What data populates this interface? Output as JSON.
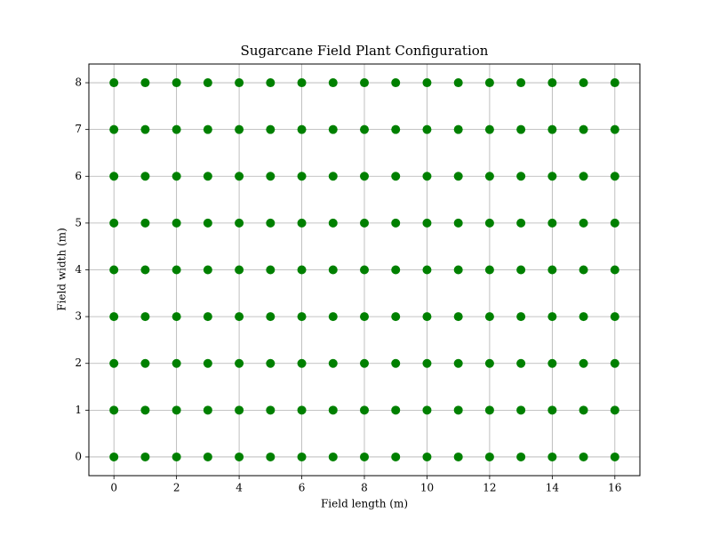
{
  "chart_data": {
    "type": "scatter",
    "title": "Sugarcane Field Plant Configuration",
    "x_label": "Field length (m)",
    "y_label": "Field width (m)",
    "color": "#008000",
    "grid": true,
    "x": [
      0,
      1,
      2,
      3,
      4,
      5,
      6,
      7,
      8,
      9,
      10,
      11,
      12,
      13,
      14,
      15,
      16,
      0,
      1,
      2,
      3,
      4,
      5,
      6,
      7,
      8,
      9,
      10,
      11,
      12,
      13,
      14,
      15,
      16,
      0,
      1,
      2,
      3,
      4,
      5,
      6,
      7,
      8,
      9,
      10,
      11,
      12,
      13,
      14,
      15,
      16,
      0,
      1,
      2,
      3,
      4,
      5,
      6,
      7,
      8,
      9,
      10,
      11,
      12,
      13,
      14,
      15,
      16,
      0,
      1,
      2,
      3,
      4,
      5,
      6,
      7,
      8,
      9,
      10,
      11,
      12,
      13,
      14,
      15,
      16,
      0,
      1,
      2,
      3,
      4,
      5,
      6,
      7,
      8,
      9,
      10,
      11,
      12,
      13,
      14,
      15,
      16,
      0,
      1,
      2,
      3,
      4,
      5,
      6,
      7,
      8,
      9,
      10,
      11,
      12,
      13,
      14,
      15,
      16,
      0,
      1,
      2,
      3,
      4,
      5,
      6,
      7,
      8,
      9,
      10,
      11,
      12,
      13,
      14,
      15,
      16,
      0,
      1,
      2,
      3,
      4,
      5,
      6,
      7,
      8,
      9,
      10,
      11,
      12,
      13,
      14,
      15,
      16
    ],
    "y": [
      0,
      0,
      0,
      0,
      0,
      0,
      0,
      0,
      0,
      0,
      0,
      0,
      0,
      0,
      0,
      0,
      0,
      1,
      1,
      1,
      1,
      1,
      1,
      1,
      1,
      1,
      1,
      1,
      1,
      1,
      1,
      1,
      1,
      1,
      2,
      2,
      2,
      2,
      2,
      2,
      2,
      2,
      2,
      2,
      2,
      2,
      2,
      2,
      2,
      2,
      2,
      3,
      3,
      3,
      3,
      3,
      3,
      3,
      3,
      3,
      3,
      3,
      3,
      3,
      3,
      3,
      3,
      3,
      4,
      4,
      4,
      4,
      4,
      4,
      4,
      4,
      4,
      4,
      4,
      4,
      4,
      4,
      4,
      4,
      4,
      5,
      5,
      5,
      5,
      5,
      5,
      5,
      5,
      5,
      5,
      5,
      5,
      5,
      5,
      5,
      5,
      5,
      6,
      6,
      6,
      6,
      6,
      6,
      6,
      6,
      6,
      6,
      6,
      6,
      6,
      6,
      6,
      6,
      6,
      7,
      7,
      7,
      7,
      7,
      7,
      7,
      7,
      7,
      7,
      7,
      7,
      7,
      7,
      7,
      7,
      7,
      8,
      8,
      8,
      8,
      8,
      8,
      8,
      8,
      8,
      8,
      8,
      8,
      8,
      8,
      8,
      8,
      8
    ],
    "xlim": [
      -0.8,
      16.8
    ],
    "xticks": [
      0,
      2,
      4,
      6,
      8,
      10,
      12,
      14,
      16
    ],
    "ylim": [
      -0.4,
      8.4
    ],
    "yticks": [
      0,
      1,
      2,
      3,
      4,
      5,
      6,
      7,
      8
    ]
  }
}
